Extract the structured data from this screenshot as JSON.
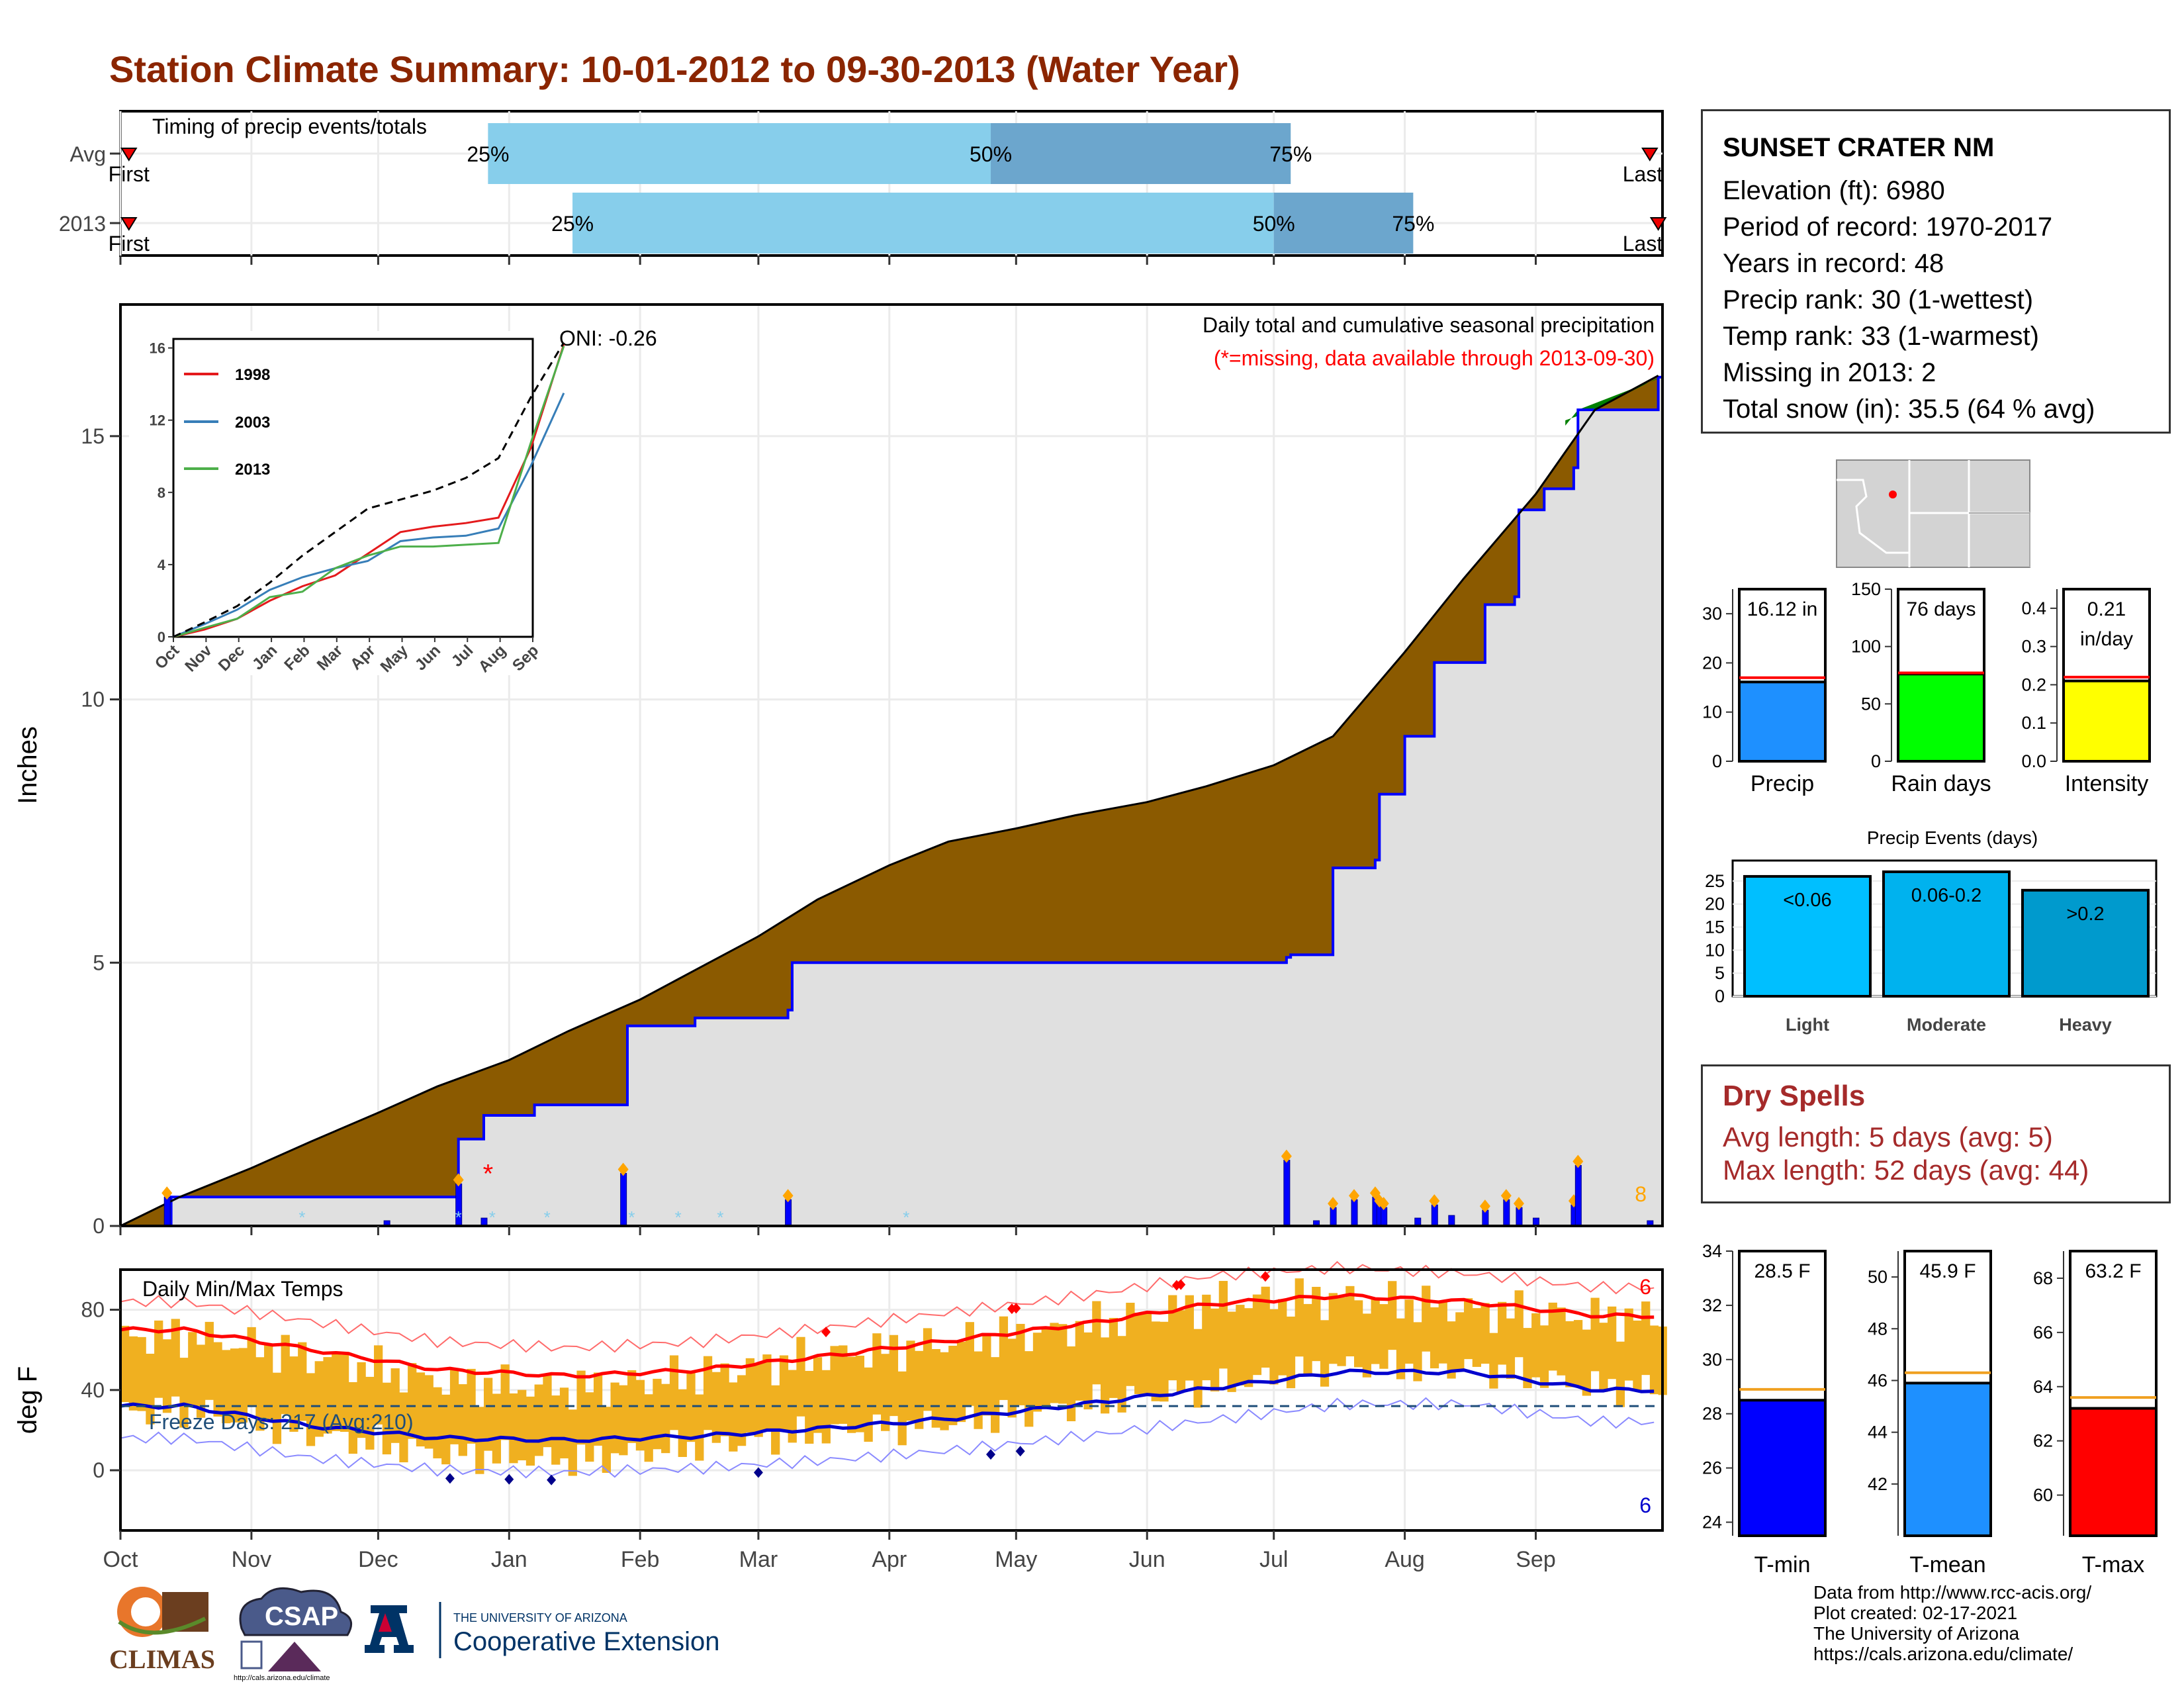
{
  "title": "Station Climate Summary: 10-01-2012 to 09-30-2013 (Water Year)",
  "station": {
    "name": "SUNSET CRATER NM",
    "lines": [
      "Elevation (ft): 6980",
      "Period of record: 1970-2017",
      "Years in record: 48",
      "Precip rank: 30 (1-wettest)",
      "Temp rank: 33 (1-warmest)",
      "Missing in 2013: 2",
      "Total snow (in): 35.5 (64 % avg)"
    ]
  },
  "dry_spells": {
    "title": "Dry Spells",
    "avg": "Avg length: 5 days (avg: 5)",
    "max": "Max length: 52 days (avg: 44)"
  },
  "footer": [
    "Data from http://www.rcc-acis.org/",
    "Plot created: 02-17-2021",
    "The University of Arizona",
    "https://cals.arizona.edu/climate/"
  ],
  "logos": {
    "climas": "CLIMAS",
    "csap": "CSAP",
    "csap_url": "http://cals.arizona.edu/climate",
    "ua_line1": "THE UNIVERSITY OF ARIZONA",
    "ua_line2": "Cooperative Extension"
  },
  "colors": {
    "title": "#8b2500",
    "deficit": "#8b5a00",
    "surplus": "#008000",
    "cum2013": "#0000ff",
    "avg_area": "#e0e0e0",
    "light_blue": "#87ceeb",
    "mid_blue": "#6ca6cd",
    "tbar": "#f0b020",
    "tmax_mean": "#ff0000",
    "tmin_mean": "#0000cd",
    "freeze": "#1f4e79"
  },
  "chart_data": [
    {
      "type": "timing",
      "label": "Timing of precip events/totals",
      "rows": [
        {
          "name": "Avg",
          "first": "First",
          "last": "Last",
          "first_date": "2012-10-03",
          "p25": "2012-12-27",
          "p50": "2013-04-25",
          "p75": "2013-07-05",
          "last_date": "2013-09-28"
        },
        {
          "name": "2013",
          "first": "First",
          "last": "Last",
          "first_date": "2012-10-03",
          "p25": "2013-01-16",
          "p50": "2013-07-01",
          "p75": "2013-08-03",
          "last_date": "2013-09-30"
        }
      ],
      "pct_labels": [
        "25%",
        "50%",
        "75%"
      ]
    },
    {
      "type": "line",
      "title": "Daily total and cumulative seasonal precipitation",
      "subtitle": "(*=missing, data available through 2013-09-30)",
      "ylabel": "Inches",
      "ylim": [
        0,
        17.5
      ],
      "yticks": [
        0,
        5,
        10,
        15
      ],
      "oni": "ONI: -0.26",
      "month_labels": [
        "Oct",
        "Nov",
        "Dec",
        "Jan",
        "Feb",
        "Mar",
        "Apr",
        "May",
        "Jun",
        "Jul",
        "Aug",
        "Sep"
      ],
      "avg_cumulative": {
        "x": [
          "2012-10-01",
          "2012-10-15",
          "2012-11-01",
          "2012-11-15",
          "2012-12-01",
          "2012-12-15",
          "2013-01-01",
          "2013-01-15",
          "2013-02-01",
          "2013-02-15",
          "2013-03-01",
          "2013-03-15",
          "2013-04-01",
          "2013-04-15",
          "2013-05-01",
          "2013-05-15",
          "2013-06-01",
          "2013-06-15",
          "2013-07-01",
          "2013-07-15",
          "2013-08-01",
          "2013-08-15",
          "2013-09-01",
          "2013-09-15",
          "2013-09-30"
        ],
        "y": [
          0,
          0.55,
          1.1,
          1.6,
          2.15,
          2.65,
          3.15,
          3.7,
          4.3,
          4.9,
          5.5,
          6.2,
          6.85,
          7.3,
          7.55,
          7.8,
          8.05,
          8.35,
          8.75,
          9.3,
          10.9,
          12.3,
          13.9,
          15.5,
          16.15
        ]
      },
      "obs_cumulative": {
        "x": [
          "2012-10-01",
          "2012-10-12",
          "2012-10-13",
          "2012-12-19",
          "2012-12-20",
          "2012-12-26",
          "2013-01-07",
          "2013-01-28",
          "2013-01-29",
          "2013-02-14",
          "2013-03-08",
          "2013-03-09",
          "2013-07-04",
          "2013-07-05",
          "2013-07-15",
          "2013-07-25",
          "2013-07-26",
          "2013-08-01",
          "2013-08-08",
          "2013-08-20",
          "2013-08-27",
          "2013-08-28",
          "2013-09-03",
          "2013-09-10",
          "2013-09-11",
          "2013-09-30"
        ],
        "y": [
          0,
          0,
          0.55,
          0.55,
          1.65,
          2.1,
          2.3,
          2.3,
          3.8,
          3.95,
          4.1,
          5.0,
          5.1,
          5.15,
          6.8,
          6.95,
          8.2,
          9.3,
          10.7,
          11.8,
          11.95,
          13.6,
          14.0,
          14.4,
          15.5,
          16.12
        ]
      },
      "daily_bars": {
        "x": [
          "2012-10-12",
          "2012-12-03",
          "2012-12-20",
          "2012-12-26",
          "2013-01-28",
          "2013-03-08",
          "2013-07-04",
          "2013-07-11",
          "2013-07-15",
          "2013-07-20",
          "2013-07-25",
          "2013-07-26",
          "2013-07-27",
          "2013-08-04",
          "2013-08-08",
          "2013-08-12",
          "2013-08-20",
          "2013-08-25",
          "2013-08-28",
          "2013-09-01",
          "2013-09-10",
          "2013-09-11",
          "2013-09-28"
        ],
        "y": [
          0.55,
          0.1,
          0.8,
          0.15,
          1.0,
          0.5,
          1.25,
          0.1,
          0.35,
          0.5,
          0.55,
          0.4,
          0.35,
          0.15,
          0.4,
          0.2,
          0.3,
          0.5,
          0.35,
          0.15,
          0.4,
          1.15,
          0.1
        ]
      },
      "extreme_count": "8",
      "missing_marker": "*",
      "inset": {
        "type": "line",
        "months": [
          "Oct",
          "Nov",
          "Dec",
          "Jan",
          "Feb",
          "Mar",
          "Apr",
          "May",
          "Jun",
          "Jul",
          "Aug",
          "Sep"
        ],
        "yticks": [
          0,
          4,
          8,
          12,
          16
        ],
        "series": [
          {
            "name": "1998",
            "color": "#e41a1c",
            "values": [
              0.4,
              1.0,
              2.0,
              2.8,
              3.4,
              4.6,
              5.8,
              6.1,
              6.3,
              6.6,
              10.5,
              16.2
            ]
          },
          {
            "name": "2003",
            "color": "#377eb8",
            "values": [
              0.7,
              1.5,
              2.6,
              3.3,
              3.8,
              4.2,
              5.3,
              5.5,
              5.6,
              6.0,
              9.5,
              13.5
            ]
          },
          {
            "name": "2013",
            "color": "#4daf4a",
            "values": [
              0.5,
              1.0,
              2.2,
              2.5,
              3.8,
              4.5,
              5.0,
              5.0,
              5.1,
              5.2,
              10.8,
              16.1
            ]
          },
          {
            "name": "",
            "color": "#000000",
            "dashed": true,
            "values": [
              0.8,
              1.7,
              3.0,
              4.5,
              5.8,
              7.1,
              7.6,
              8.1,
              8.8,
              9.9,
              13.3,
              16.3
            ]
          }
        ]
      }
    },
    {
      "type": "bar",
      "title": "Daily Min/Max Temps",
      "ylabel": "deg F",
      "ylim": [
        -30,
        100
      ],
      "yticks": [
        0,
        40,
        80
      ],
      "month_labels": [
        "Oct",
        "Nov",
        "Dec",
        "Jan",
        "Feb",
        "Mar",
        "Apr",
        "May",
        "Jun",
        "Jul",
        "Aug",
        "Sep"
      ],
      "freeze_label": "Freeze Days: 217 (Avg:210)",
      "freeze_line": 32,
      "record_high_count": "6",
      "record_low_count": "6",
      "avg_max_monthly": [
        70,
        60,
        50,
        47,
        50,
        57,
        65,
        73,
        83,
        87,
        84,
        77
      ],
      "avg_min_monthly": [
        32,
        22,
        16,
        15,
        17,
        21,
        26,
        33,
        41,
        49,
        49,
        40
      ],
      "obs_max_monthly": [
        67,
        56,
        44,
        40,
        48,
        57,
        64,
        72,
        84,
        86,
        80,
        76
      ],
      "obs_min_monthly": [
        30,
        18,
        8,
        5,
        13,
        19,
        24,
        33,
        42,
        52,
        51,
        41
      ]
    },
    {
      "type": "bar",
      "title": "Precip",
      "categories": [
        "Precip"
      ],
      "values": [
        16.12
      ],
      "avg": 17.0,
      "label": "16.12 in",
      "ylim": [
        0,
        35
      ],
      "yticks": [
        0,
        10,
        20,
        30
      ],
      "color": "#1e90ff"
    },
    {
      "type": "bar",
      "title": "Rain days",
      "categories": [
        "Rain days"
      ],
      "values": [
        76
      ],
      "avg": 77,
      "label": "76 days",
      "ylim": [
        0,
        150
      ],
      "yticks": [
        0,
        50,
        100,
        150
      ],
      "color": "#00ff00"
    },
    {
      "type": "bar",
      "title": "Intensity",
      "categories": [
        "Intensity"
      ],
      "values": [
        0.21
      ],
      "avg": 0.22,
      "label": "0.21 in/day",
      "ylim": [
        0,
        0.45
      ],
      "yticks": [
        0.0,
        0.1,
        0.2,
        0.3,
        0.4
      ],
      "color": "#ffff00"
    },
    {
      "type": "bar",
      "title": "Precip Events (days)",
      "categories": [
        "Light",
        "Moderate",
        "Heavy"
      ],
      "values": [
        26,
        27,
        23
      ],
      "labels": [
        "<0.06",
        "0.06-0.2",
        ">0.2"
      ],
      "ylim": [
        0,
        28
      ],
      "yticks": [
        0,
        5,
        10,
        15,
        20,
        25
      ],
      "colors": [
        "#00bfff",
        "#00b2ee",
        "#009acd"
      ]
    },
    {
      "type": "bar",
      "title": "T-min",
      "categories": [
        "T-min"
      ],
      "values": [
        28.5
      ],
      "avg": 28.9,
      "label": "28.5 F",
      "ylim": [
        23.5,
        34
      ],
      "yticks": [
        24,
        26,
        28,
        30,
        32,
        34
      ],
      "color": "#0000ff"
    },
    {
      "type": "bar",
      "title": "T-mean",
      "categories": [
        "T-mean"
      ],
      "values": [
        45.9
      ],
      "avg": 46.3,
      "label": "45.9 F",
      "ylim": [
        40,
        51
      ],
      "yticks": [
        42,
        44,
        46,
        48,
        50
      ],
      "color": "#1e90ff"
    },
    {
      "type": "bar",
      "title": "T-max",
      "categories": [
        "T-max"
      ],
      "values": [
        63.2
      ],
      "avg": 63.6,
      "label": "63.2 F",
      "ylim": [
        58.5,
        69
      ],
      "yticks": [
        60,
        62,
        64,
        66,
        68
      ],
      "color": "#ff0000"
    }
  ]
}
